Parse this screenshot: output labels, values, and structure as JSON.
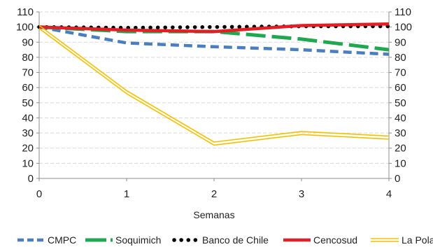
{
  "chart_data": {
    "type": "line",
    "x": [
      0,
      1,
      2,
      3,
      4
    ],
    "xlabel": "Semanas",
    "ylabel": "",
    "ylim": [
      0,
      110
    ],
    "yticks": [
      0,
      10,
      20,
      30,
      40,
      50,
      60,
      70,
      80,
      90,
      100,
      110
    ],
    "xticks": [
      0,
      1,
      2,
      3,
      4
    ],
    "grid": true,
    "secondary_axis": true,
    "legend_position": "bottom",
    "series": [
      {
        "name": "CMPC",
        "style": "dashed",
        "color": "#4a7ebf",
        "values": [
          100,
          89.5,
          87,
          85,
          82
        ]
      },
      {
        "name": "Soquimich",
        "style": "long-dash",
        "color": "#1fa84f",
        "values": [
          100,
          97,
          97,
          92,
          85
        ]
      },
      {
        "name": "Banco de Chile",
        "style": "dotted",
        "color": "#000000",
        "values": [
          100,
          99.5,
          100,
          100.5,
          100.5
        ]
      },
      {
        "name": "Cencosud",
        "style": "solid",
        "color": "#e31e24",
        "values": [
          100,
          98,
          97,
          101,
          102
        ]
      },
      {
        "name": "La Polar",
        "style": "double",
        "color": "#f5c000",
        "values": [
          100,
          57,
          23,
          30,
          27
        ]
      }
    ]
  }
}
